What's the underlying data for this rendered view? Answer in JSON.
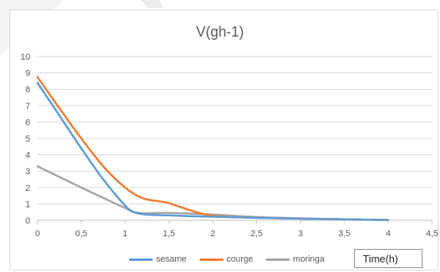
{
  "chart_data": {
    "type": "line",
    "title": "V(gh-1)",
    "xlabel": "Time(h)",
    "ylabel": "",
    "xlim": [
      0,
      4.5
    ],
    "ylim": [
      0,
      10
    ],
    "x_ticks": [
      "0",
      "0,5",
      "1",
      "1,5",
      "2",
      "2,5",
      "3",
      "3,5",
      "4",
      "4,5"
    ],
    "y_ticks": [
      "0",
      "1",
      "2",
      "3",
      "4",
      "5",
      "6",
      "7",
      "8",
      "9",
      "10"
    ],
    "grid": true,
    "legend": "bottom",
    "series": [
      {
        "name": "sesame",
        "color": "#5b9bd5",
        "x": [
          0,
          0.25,
          0.5,
          0.75,
          1,
          1.1,
          1.25,
          1.5,
          1.75,
          2,
          2.5,
          3,
          3.5,
          4
        ],
        "y": [
          8.4,
          6.4,
          4.4,
          2.5,
          0.9,
          0.5,
          0.35,
          0.3,
          0.25,
          0.22,
          0.15,
          0.1,
          0.06,
          0.02
        ]
      },
      {
        "name": "courge",
        "color": "#ed7d31",
        "x": [
          0,
          0.25,
          0.5,
          0.75,
          1,
          1.2,
          1.4,
          1.5,
          1.75,
          2,
          2.5,
          3,
          3.5,
          4
        ],
        "y": [
          8.75,
          6.85,
          5.0,
          3.3,
          2.0,
          1.35,
          1.15,
          1.05,
          0.6,
          0.28,
          0.15,
          0.1,
          0.06,
          0.02
        ]
      },
      {
        "name": "moringa",
        "color": "#a5a5a5",
        "x": [
          0,
          0.5,
          1,
          1.15,
          1.5,
          2,
          2.5,
          3,
          3.5,
          4
        ],
        "y": [
          3.3,
          2.0,
          0.75,
          0.45,
          0.45,
          0.35,
          0.2,
          0.12,
          0.06,
          0.02
        ]
      }
    ]
  }
}
